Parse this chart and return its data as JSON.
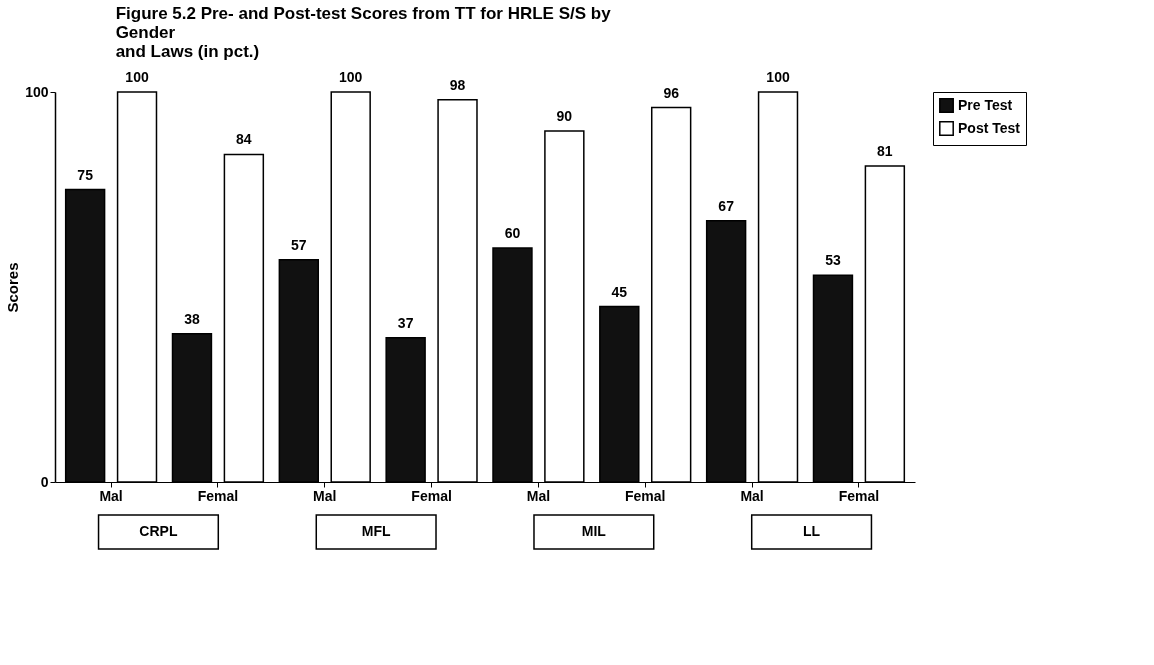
{
  "chart_data": {
    "type": "bar",
    "title": [
      "Figure 5.2  Pre- and Post-test Scores from TT for HRLE S/S by",
      "Gender",
      "and Laws   (in pct.)"
    ],
    "ylabel": "Scores",
    "categories": [
      "Mal",
      "Femal",
      "Mal",
      "Femal",
      "Mal",
      "Femal",
      "Mal",
      "Femal"
    ],
    "series": [
      {
        "name": "Pre Test",
        "color": "#111111",
        "values": [
          75,
          38,
          57,
          37,
          60,
          45,
          67,
          53
        ]
      },
      {
        "name": "Post Test",
        "color": "#ffffff",
        "values": [
          100,
          84,
          100,
          98,
          90,
          96,
          100,
          81
        ]
      }
    ],
    "ylim": [
      0,
      100
    ],
    "yticks": [
      0,
      100
    ],
    "data_labels": true,
    "grid": false,
    "legend": "right",
    "annotations": [
      "CRPL",
      "MFL",
      "MIL",
      "LL"
    ]
  }
}
